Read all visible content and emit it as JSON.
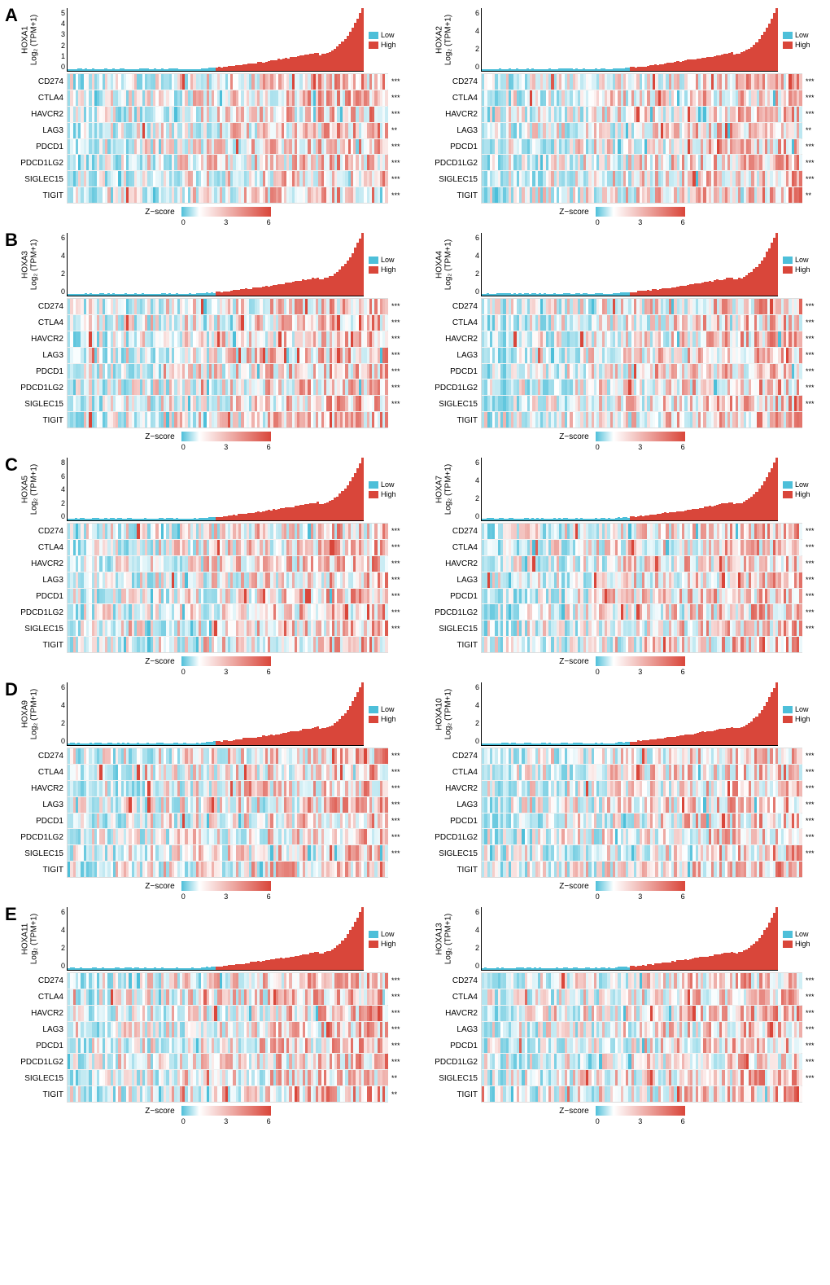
{
  "genes": [
    "CD274",
    "CTLA4",
    "HAVCR2",
    "LAG3",
    "PDCD1",
    "PDCD1LG2",
    "SIGLEC15",
    "TIGIT"
  ],
  "legend_groups": {
    "low_label": "Low",
    "high_label": "High",
    "low_color": "#4dbfd9",
    "high_color": "#d9463a"
  },
  "zscore": {
    "label": "Z−score",
    "ticks": [
      "0",
      "3",
      "6"
    ],
    "grad_low": "#4dbfd9",
    "grad_mid": "#ffffff",
    "grad_high": "#d9463a"
  },
  "bar_n": 120,
  "heat_n": 120,
  "rows": [
    {
      "label": "A",
      "panels": [
        {
          "ylab_gene": "HOXA1",
          "ylab_sub": "Log₂ (TPM+1)",
          "ticks": [
            "5",
            "4",
            "3",
            "2",
            "1",
            "0"
          ],
          "ymax": 5,
          "sig": [
            "***",
            "***",
            "***",
            "**",
            "***",
            "***",
            "***",
            "***"
          ],
          "seed": 11
        },
        {
          "ylab_gene": "HOXA2",
          "ylab_sub": "Log₂ (TPM+1)",
          "ticks": [
            "6",
            "4",
            "2",
            "0"
          ],
          "ymax": 6.5,
          "sig": [
            "***",
            "***",
            "***",
            "**",
            "***",
            "***",
            "***",
            "**"
          ],
          "seed": 12
        }
      ]
    },
    {
      "label": "B",
      "panels": [
        {
          "ylab_gene": "HOXA3",
          "ylab_sub": "Log₂ (TPM+1)",
          "ticks": [
            "6",
            "4",
            "2",
            "0"
          ],
          "ymax": 7,
          "sig": [
            "***",
            "***",
            "***",
            "***",
            "***",
            "***",
            "***",
            ""
          ],
          "seed": 21
        },
        {
          "ylab_gene": "HOXA4",
          "ylab_sub": "Log₂ (TPM+1)",
          "ticks": [
            "6",
            "4",
            "2",
            "0"
          ],
          "ymax": 6.5,
          "sig": [
            "***",
            "***",
            "***",
            "***",
            "***",
            "***",
            "***",
            ""
          ],
          "seed": 22
        }
      ]
    },
    {
      "label": "C",
      "panels": [
        {
          "ylab_gene": "HOXA5",
          "ylab_sub": "Log₂ (TPM+1)",
          "ticks": [
            "8",
            "6",
            "4",
            "2",
            "0"
          ],
          "ymax": 8,
          "sig": [
            "***",
            "***",
            "***",
            "***",
            "***",
            "***",
            "***",
            ""
          ],
          "seed": 31
        },
        {
          "ylab_gene": "HOXA7",
          "ylab_sub": "Log₂ (TPM+1)",
          "ticks": [
            "6",
            "4",
            "2",
            "0"
          ],
          "ymax": 6.5,
          "sig": [
            "***",
            "***",
            "***",
            "***",
            "***",
            "***",
            "***",
            ""
          ],
          "seed": 32
        }
      ]
    },
    {
      "label": "D",
      "panels": [
        {
          "ylab_gene": "HOXA9",
          "ylab_sub": "Log₂ (TPM+1)",
          "ticks": [
            "6",
            "4",
            "2",
            "0"
          ],
          "ymax": 7,
          "sig": [
            "***",
            "***",
            "***",
            "***",
            "***",
            "***",
            "***",
            ""
          ],
          "seed": 41
        },
        {
          "ylab_gene": "HOXA10",
          "ylab_sub": "Log₂ (TPM+1)",
          "ticks": [
            "6",
            "4",
            "2",
            "0"
          ],
          "ymax": 7.5,
          "sig": [
            "***",
            "***",
            "***",
            "***",
            "***",
            "***",
            "***",
            ""
          ],
          "seed": 42
        }
      ]
    },
    {
      "label": "E",
      "panels": [
        {
          "ylab_gene": "HOXA11",
          "ylab_sub": "Log₂ (TPM+1)",
          "ticks": [
            "6",
            "4",
            "2",
            "0"
          ],
          "ymax": 6.5,
          "sig": [
            "***",
            "***",
            "***",
            "***",
            "***",
            "***",
            "**",
            "**"
          ],
          "seed": 51
        },
        {
          "ylab_gene": "HOXA13",
          "ylab_sub": "Log₂ (TPM+1)",
          "ticks": [
            "6",
            "4",
            "2",
            "0"
          ],
          "ymax": 6.5,
          "sig": [
            "***",
            "***",
            "***",
            "***",
            "***",
            "***",
            "***",
            ""
          ],
          "seed": 52
        }
      ]
    }
  ]
}
